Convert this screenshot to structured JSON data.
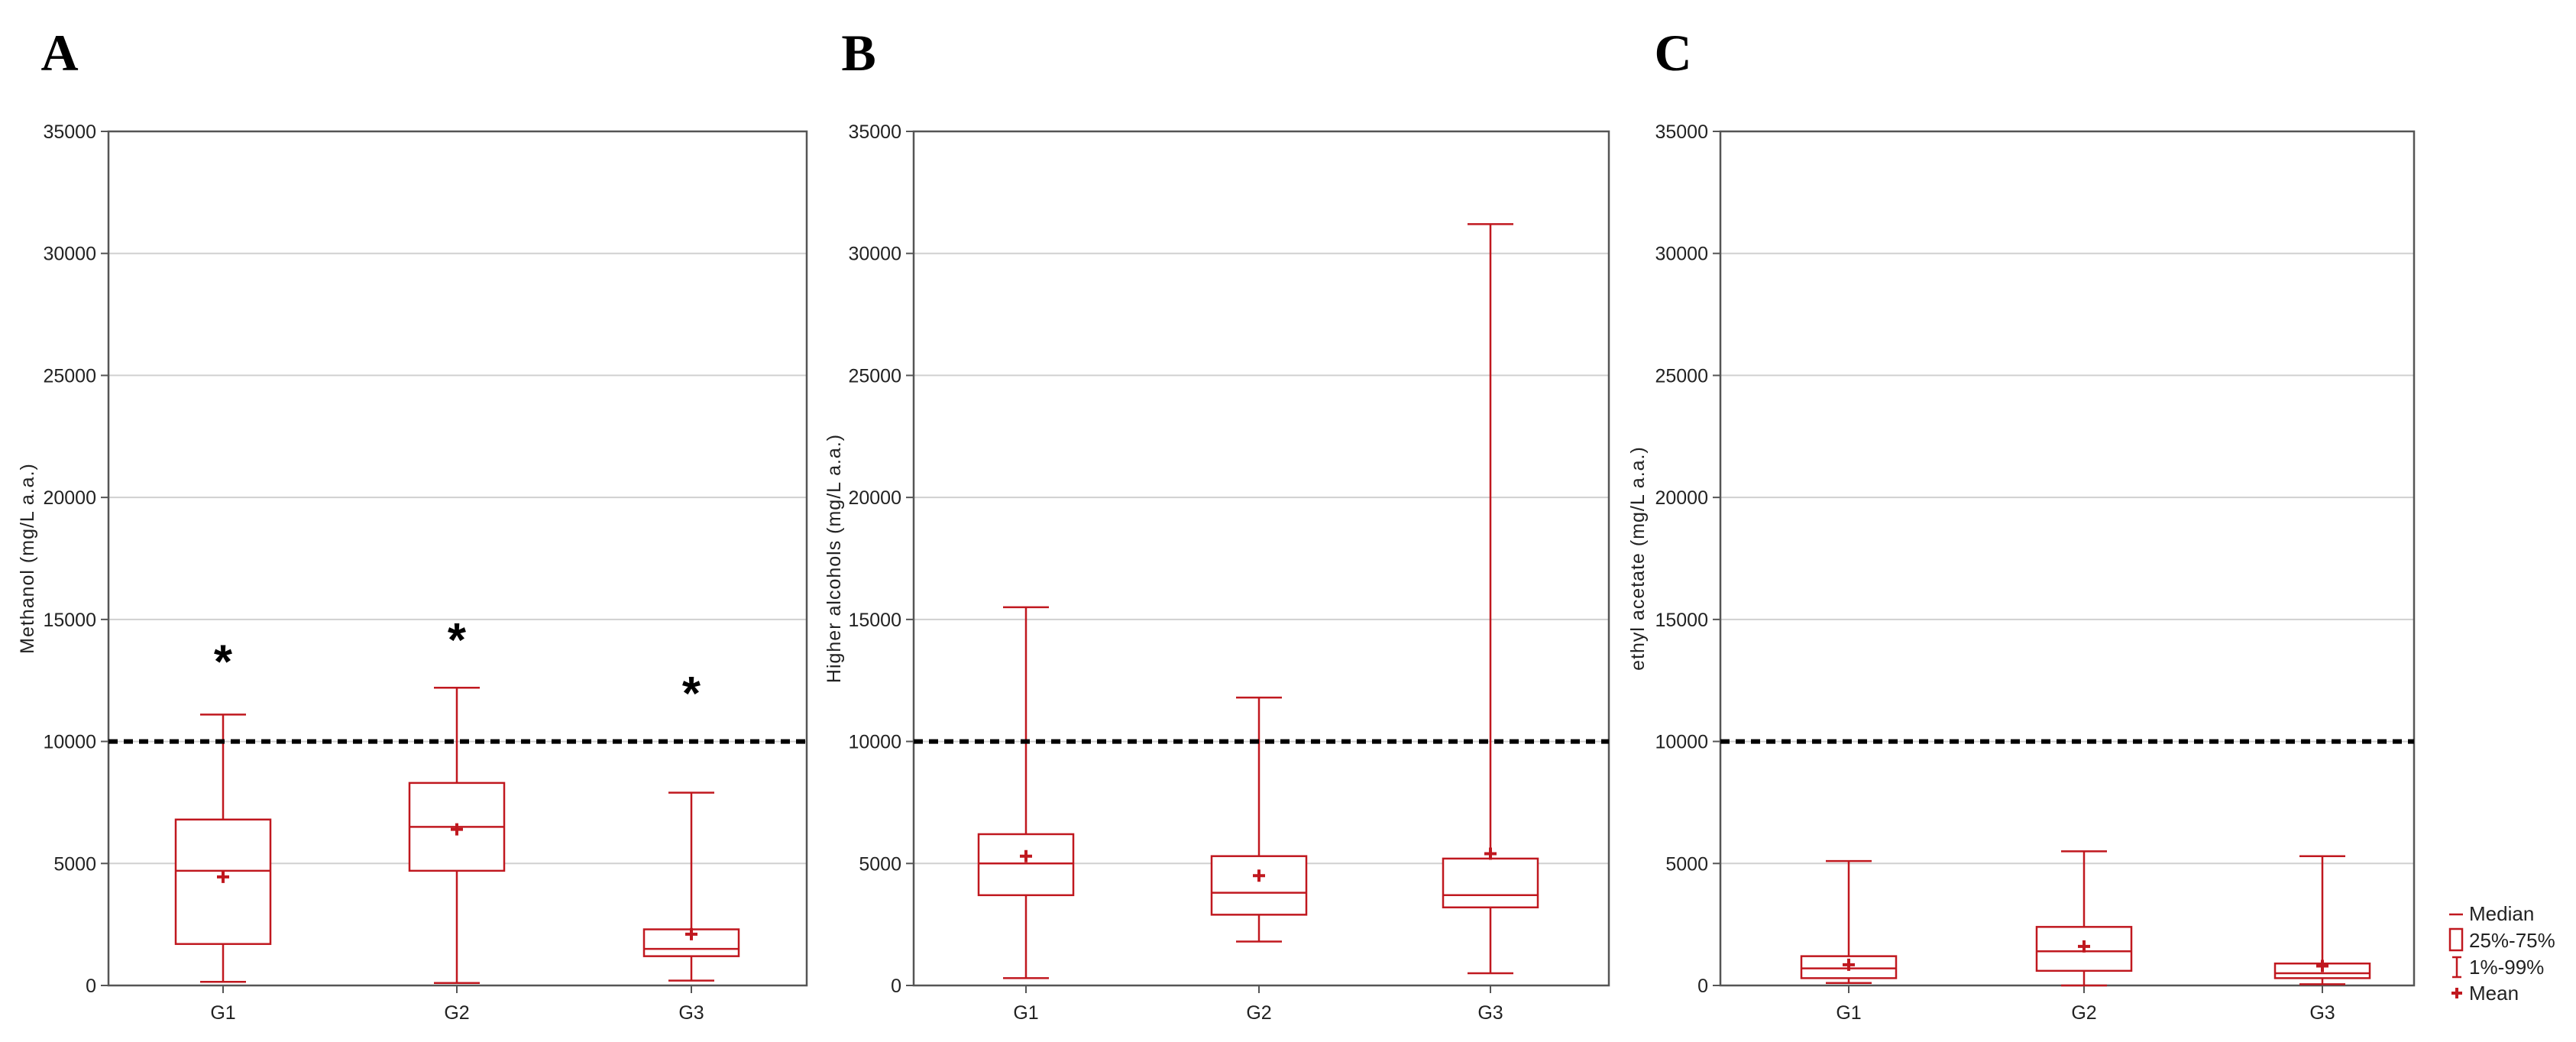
{
  "chart_data": [
    {
      "panel": "A",
      "type": "box",
      "ylabel": "Methanol (mg/L a.a.)",
      "categories": [
        "G1",
        "G2",
        "G3"
      ],
      "ylim": [
        0,
        35000
      ],
      "yticks": [
        0,
        5000,
        10000,
        15000,
        20000,
        25000,
        30000,
        35000
      ],
      "yticklabels": [
        "0",
        "5000",
        "10000",
        "15000",
        "20000",
        "25000",
        "30000",
        "35000"
      ],
      "grid": "horizontal",
      "reference_line": 10000,
      "boxes": [
        {
          "group": "G1",
          "p1": 150,
          "q1": 1700,
          "median": 4700,
          "q3": 6800,
          "p99": 11100,
          "mean": 4450
        },
        {
          "group": "G2",
          "p1": 100,
          "q1": 4700,
          "median": 6500,
          "q3": 8300,
          "p99": 12200,
          "mean": 6400
        },
        {
          "group": "G3",
          "p1": 200,
          "q1": 1200,
          "median": 1500,
          "q3": 2300,
          "p99": 7900,
          "mean": 2100
        }
      ],
      "annotations": [
        {
          "group": "G1",
          "text": "*",
          "y": 13600
        },
        {
          "group": "G2",
          "text": "*",
          "y": 14500
        },
        {
          "group": "G3",
          "text": "*",
          "y": 12300
        }
      ]
    },
    {
      "panel": "B",
      "type": "box",
      "ylabel": "Higher alcohols (mg/L a.a.)",
      "categories": [
        "G1",
        "G2",
        "G3"
      ],
      "ylim": [
        0,
        35000
      ],
      "yticks": [
        0,
        5000,
        10000,
        15000,
        20000,
        25000,
        30000,
        35000
      ],
      "yticklabels": [
        "0",
        "5000",
        "10000",
        "15000",
        "20000",
        "25000",
        "30000",
        "35000"
      ],
      "grid": "horizontal",
      "reference_line": 10000,
      "boxes": [
        {
          "group": "G1",
          "p1": 300,
          "q1": 3700,
          "median": 5000,
          "q3": 6200,
          "p99": 15500,
          "mean": 5300
        },
        {
          "group": "G2",
          "p1": 1800,
          "q1": 2900,
          "median": 3800,
          "q3": 5300,
          "p99": 11800,
          "mean": 4500
        },
        {
          "group": "G3",
          "p1": 500,
          "q1": 3200,
          "median": 3700,
          "q3": 5200,
          "p99": 31200,
          "mean": 5400
        }
      ],
      "annotations": []
    },
    {
      "panel": "C",
      "type": "box",
      "ylabel": "ethyl acetate (mg/L a.a.)",
      "categories": [
        "G1",
        "G2",
        "G3"
      ],
      "ylim": [
        0,
        35000
      ],
      "yticks": [
        0,
        5000,
        10000,
        15000,
        20000,
        25000,
        30000,
        35000
      ],
      "yticklabels": [
        "0",
        "5000",
        "10000",
        "15000",
        "20000",
        "25000",
        "30000",
        "35000"
      ],
      "grid": "horizontal",
      "reference_line": 10000,
      "boxes": [
        {
          "group": "G1",
          "p1": 100,
          "q1": 300,
          "median": 700,
          "q3": 1200,
          "p99": 5100,
          "mean": 850
        },
        {
          "group": "G2",
          "p1": 0,
          "q1": 600,
          "median": 1400,
          "q3": 2400,
          "p99": 5500,
          "mean": 1600
        },
        {
          "group": "G3",
          "p1": 50,
          "q1": 300,
          "median": 500,
          "q3": 900,
          "p99": 5300,
          "mean": 800
        }
      ],
      "annotations": []
    }
  ],
  "legend": {
    "position": "bottom-right",
    "items": [
      {
        "symbol": "median",
        "label": "Median"
      },
      {
        "symbol": "box",
        "label": "25%-75%"
      },
      {
        "symbol": "whisker",
        "label": "1%-99%"
      },
      {
        "symbol": "mean",
        "label": "Mean"
      }
    ]
  },
  "colors": {
    "box": "#c0181f",
    "grid": "#d0d0d0",
    "frame": "#555555",
    "reference": "#000000"
  }
}
